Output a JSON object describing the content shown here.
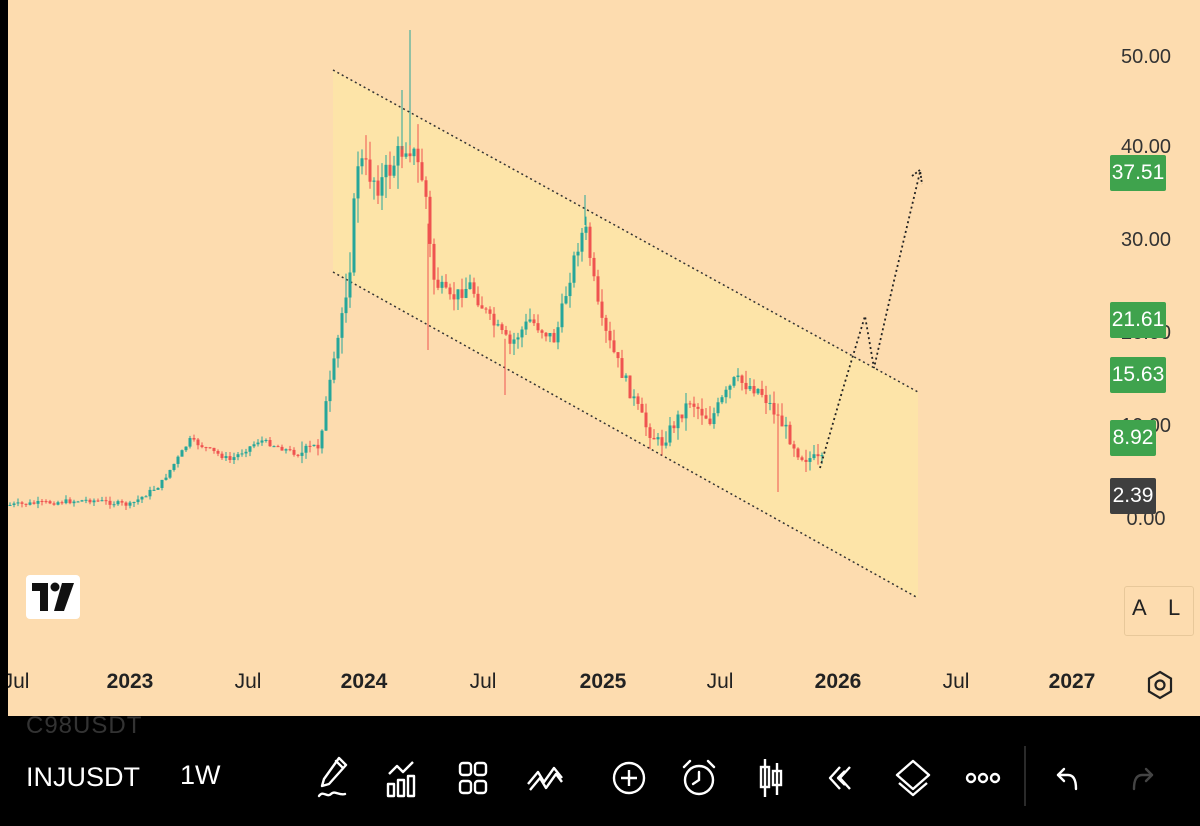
{
  "chart": {
    "symbol": "INJUSDT",
    "interval": "1W",
    "ghost_symbol": "C98USDT",
    "price_axis": [
      "50.00",
      "40.00",
      "30.00",
      "20.00",
      "10.00",
      "0.00"
    ],
    "price_badges": [
      {
        "label": "37.51",
        "color": "#3fa34d"
      },
      {
        "label": "21.61",
        "color": "#3fa34d"
      },
      {
        "label": "15.63",
        "color": "#3fa34d"
      },
      {
        "label": "8.92",
        "color": "#3fa34d"
      },
      {
        "label": "2.39",
        "color": "#3f3f3f"
      }
    ],
    "time_axis": [
      "Jul",
      "2023",
      "Jul",
      "2024",
      "Jul",
      "2025",
      "Jul",
      "2026",
      "Jul",
      "2027"
    ],
    "scale_buttons": [
      "A",
      "L"
    ],
    "up_color": "#26a69a",
    "down_color": "#ef5350",
    "background": "#fddcaf",
    "channel_fill": "#fde6a6"
  },
  "toolbar": {
    "tools": [
      "pencil-icon",
      "indicators-icon",
      "grid-icon",
      "patterns-icon",
      "add-icon",
      "alarm-icon",
      "candles-icon",
      "replay-icon",
      "layers-icon",
      "more-icon",
      "undo-icon",
      "redo-icon"
    ]
  }
}
